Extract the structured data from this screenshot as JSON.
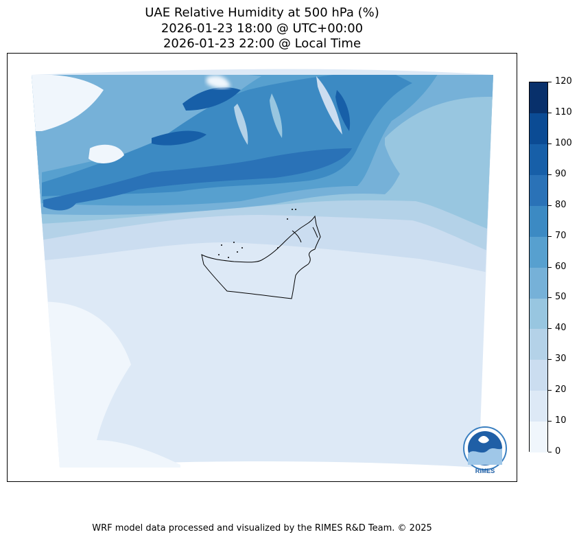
{
  "title": {
    "line1": "UAE Relative Humidity at 500 hPa (%)",
    "line2": "2026-01-23 18:00 @ UTC+00:00",
    "line3": "2026-01-23 22:00 @ Local Time"
  },
  "colorbar": {
    "levels": [
      0,
      10,
      20,
      30,
      40,
      50,
      60,
      70,
      80,
      90,
      100,
      110,
      120
    ],
    "labels": [
      "0",
      "10",
      "20",
      "30",
      "40",
      "50",
      "60",
      "70",
      "80",
      "90",
      "100",
      "110",
      "120"
    ],
    "colors": [
      "#f0f6fc",
      "#dde9f6",
      "#cbddf0",
      "#b4d2e8",
      "#98c6e0",
      "#76b1d8",
      "#57a0cf",
      "#3c8ac3",
      "#2a72b7",
      "#175fa8",
      "#0b4b94",
      "#08306b"
    ]
  },
  "logo": {
    "text": "RIMES"
  },
  "footer": {
    "credit": "WRF model data processed and visualized by the RIMES R&D Team. © 2025"
  }
}
